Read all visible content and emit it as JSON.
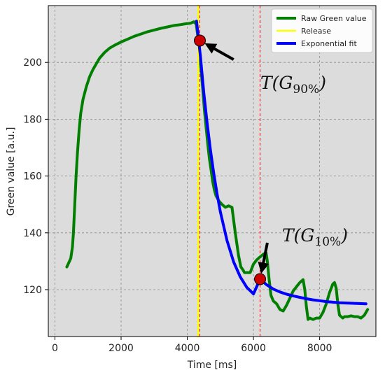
{
  "chart_data": {
    "type": "line",
    "xlabel": "Time [ms]",
    "ylabel": "Green value [a.u.]",
    "xlim": [
      -200,
      9700
    ],
    "ylim": [
      103.5,
      220
    ],
    "xticks": [
      0,
      2000,
      4000,
      6000,
      8000
    ],
    "yticks": [
      120,
      140,
      160,
      180,
      200
    ],
    "grid": true,
    "legend_position": "top-right",
    "series": [
      {
        "name": "Raw Green value",
        "color": "#007f00",
        "x": [
          360,
          420,
          480,
          530,
          560,
          600,
          640,
          680,
          730,
          780,
          850,
          950,
          1050,
          1150,
          1250,
          1350,
          1500,
          1650,
          1800,
          2000,
          2200,
          2400,
          2600,
          2800,
          3000,
          3200,
          3400,
          3600,
          3800,
          3950,
          4100,
          4200,
          4270,
          4320,
          4370,
          4420,
          4470,
          4520,
          4570,
          4620,
          4670,
          4720,
          4770,
          4820,
          4870,
          4920,
          4970,
          5050,
          5150,
          5250,
          5350,
          5450,
          5550,
          5620,
          5680,
          5730,
          5800,
          5900,
          6000,
          6100,
          6200,
          6300,
          6380,
          6420,
          6470,
          6530,
          6600,
          6700,
          6800,
          6900,
          7000,
          7100,
          7200,
          7300,
          7400,
          7500,
          7550,
          7600,
          7650,
          7700,
          7800,
          7900,
          8000,
          8100,
          8200,
          8300,
          8400,
          8450,
          8500,
          8550,
          8600,
          8650,
          8700,
          8750,
          8850,
          8950,
          9050,
          9150,
          9250,
          9350,
          9450
        ],
        "y": [
          128,
          129.5,
          131,
          135,
          140,
          150,
          160,
          168,
          176,
          182,
          187,
          191.5,
          195,
          197.5,
          199.5,
          201.5,
          203.5,
          205,
          206,
          207.2,
          208.2,
          209.2,
          210,
          210.8,
          211.4,
          212,
          212.5,
          213,
          213.3,
          213.6,
          213.8,
          214.3,
          213.5,
          209,
          203,
          197,
          190,
          183,
          177,
          171,
          166,
          162,
          158,
          155,
          153,
          152,
          151,
          150,
          149,
          149.5,
          149,
          140,
          132,
          128,
          127,
          126,
          126,
          126,
          129,
          130.5,
          131.5,
          132.5,
          133,
          130,
          124,
          118,
          116,
          115,
          113,
          112.5,
          114.5,
          117,
          119.5,
          121,
          122.5,
          123.5,
          120,
          114,
          109.5,
          110,
          109.5,
          110,
          110,
          112,
          115,
          119,
          122,
          122.5,
          120.5,
          115,
          111,
          110.5,
          110,
          110.5,
          110.5,
          110.8,
          110.5,
          110.5,
          110,
          111,
          113
        ]
      },
      {
        "name": "Release",
        "color": "#ffff00",
        "x": [
          4330,
          4330
        ],
        "y": [
          103.5,
          220
        ]
      },
      {
        "name": "Exponential fit",
        "color": "#0000ff",
        "x": [
          4280,
          4300,
          4330,
          4350,
          4400,
          4450,
          4500,
          4600,
          4700,
          4800,
          4900,
          5000,
          5200,
          5400,
          5600,
          5800,
          6000,
          6200,
          6400,
          6600,
          6800,
          7000,
          7200,
          7400,
          7600,
          7800,
          8000,
          8200,
          8400,
          8600,
          8800,
          9000,
          9200,
          9400
        ],
        "y": [
          214.5,
          212.5,
          209.6,
          207.1,
          201.7,
          195.5,
          189.2,
          178.6,
          169.2,
          160.9,
          153.7,
          147.4,
          137.3,
          129.8,
          124.5,
          120.8,
          118.5,
          123.7,
          121.7,
          120.2,
          119.2,
          118.4,
          117.8,
          117.3,
          116.8,
          116.4,
          116.1,
          115.8,
          115.6,
          115.4,
          115.3,
          115.2,
          115.1,
          115.0
        ]
      }
    ],
    "vlines": [
      {
        "x": 4380,
        "color": "#ff0000",
        "style": "dashed"
      },
      {
        "x": 6200,
        "color": "#ff0000",
        "style": "dashed"
      }
    ],
    "markers": [
      {
        "x": 4380,
        "y": 207.7,
        "color": "#cc0000"
      },
      {
        "x": 6200,
        "y": 123.7,
        "color": "#cc0000"
      }
    ],
    "annotations": [
      {
        "text_main": "T(G",
        "text_sub": "90%",
        "text_close": ")",
        "arrow_to": [
          4380,
          207.7
        ],
        "arrow_from": [
          5400,
          201
        ]
      },
      {
        "text_main": "T(G",
        "text_sub": "10%",
        "text_close": ")",
        "arrow_to": [
          6200,
          123.7
        ],
        "arrow_from": [
          6420,
          136.5
        ]
      }
    ]
  }
}
